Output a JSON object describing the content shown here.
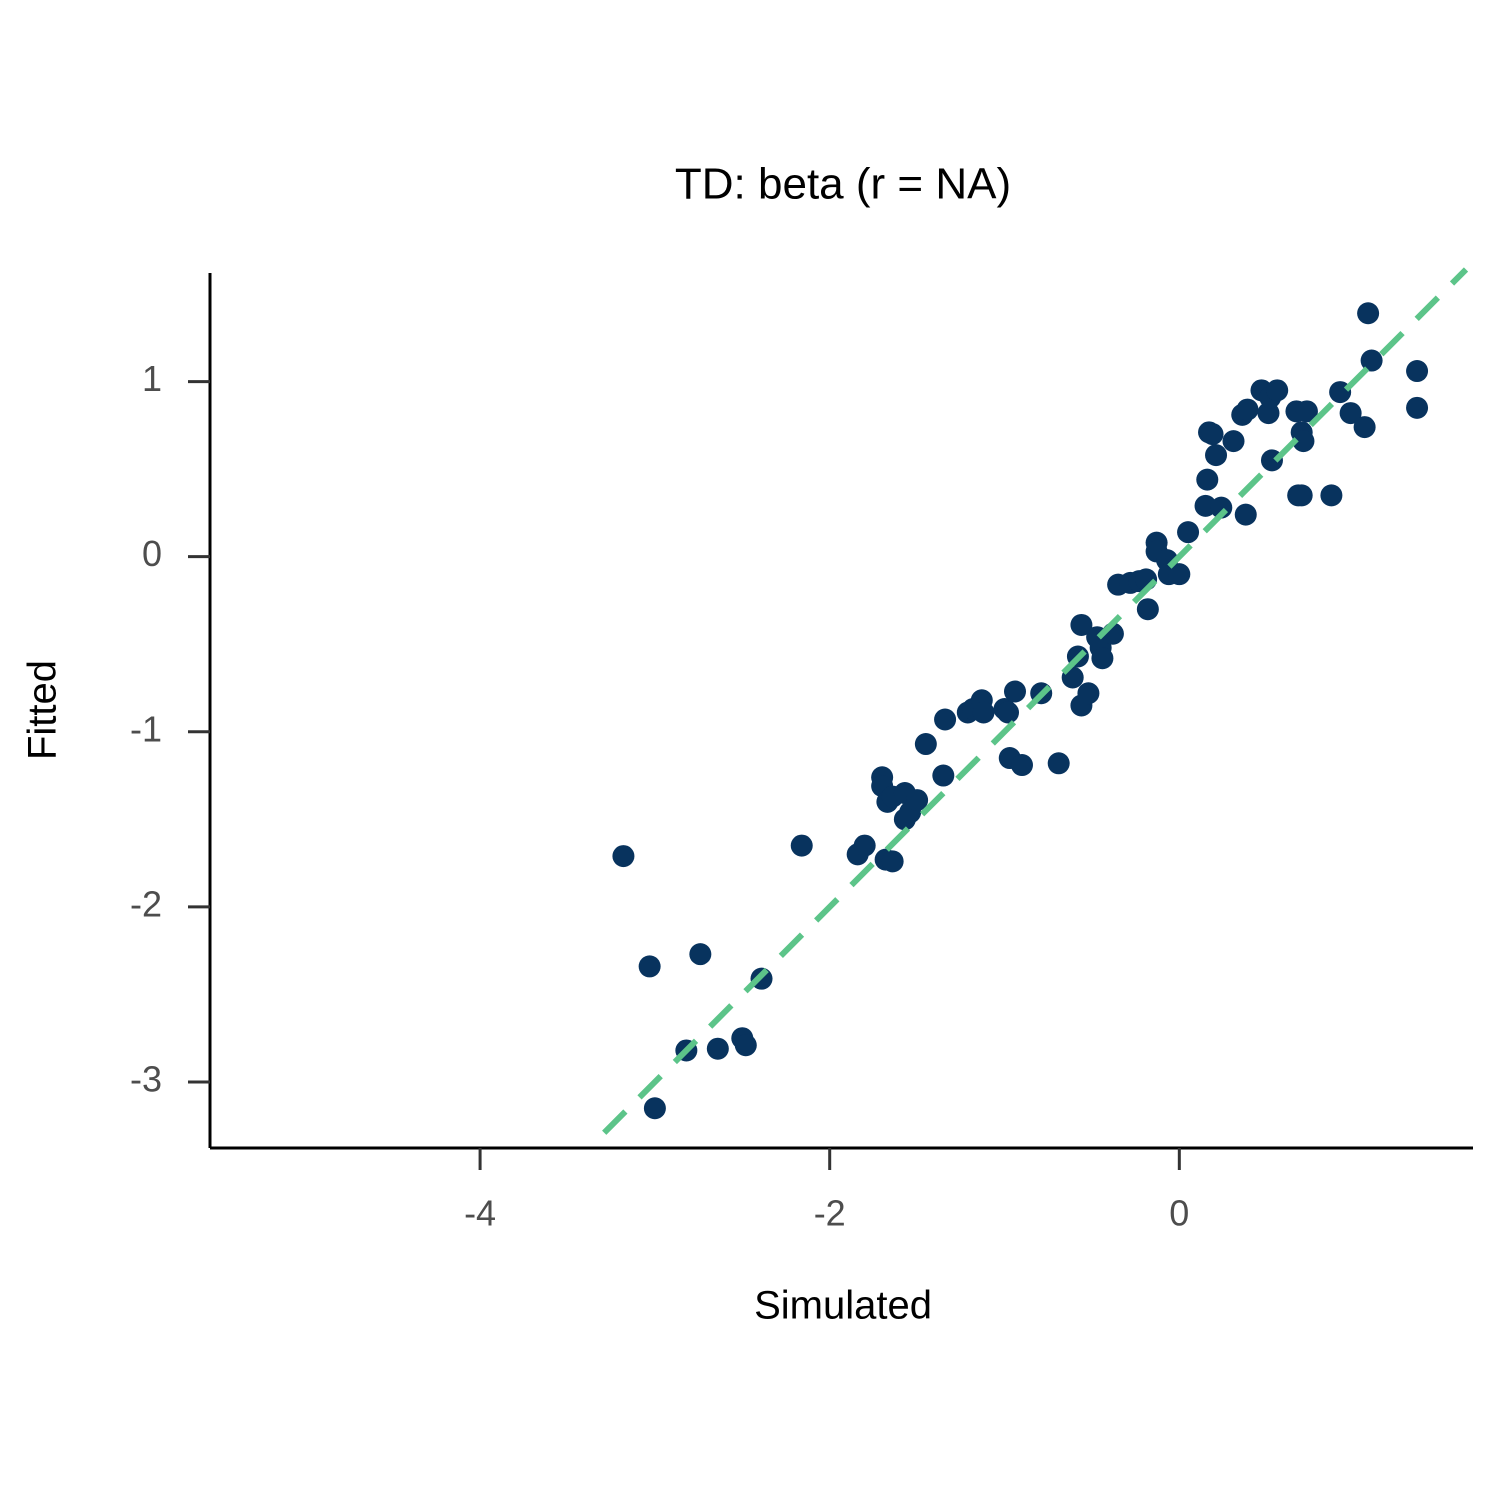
{
  "chart_data": {
    "type": "scatter",
    "title": "TD: beta (r = NA)",
    "x_label": "Simulated",
    "y_label": "Fitted",
    "x": [
      -3.18,
      -3.03,
      -2.74,
      -2.39,
      -2.82,
      -2.64,
      -2.5,
      -2.48,
      -3.0,
      -2.16,
      -1.84,
      -1.8,
      -1.68,
      -1.64,
      -1.7,
      -1.7,
      -1.67,
      -1.64,
      -1.57,
      -1.57,
      -1.54,
      -1.5,
      -1.45,
      -1.35,
      -1.34,
      -1.21,
      -1.18,
      -1.13,
      -1.12,
      -1.0,
      -0.98,
      -0.94,
      -0.79,
      -0.97,
      -0.9,
      -0.69,
      -0.61,
      -0.58,
      -0.56,
      -0.56,
      -0.52,
      -0.47,
      -0.45,
      -0.44,
      -0.38,
      -0.35,
      -0.28,
      -0.23,
      -0.19,
      -0.18,
      -0.13,
      -0.13,
      -0.07,
      -0.06,
      0.0,
      0.05,
      0.15,
      0.16,
      0.17,
      0.19,
      0.21,
      0.24,
      0.31,
      0.36,
      0.39,
      0.38,
      0.47,
      0.51,
      0.52,
      0.56,
      0.53,
      0.68,
      0.7,
      0.67,
      0.73,
      0.7,
      0.71,
      0.87,
      0.92,
      0.98,
      1.06,
      1.08,
      1.1,
      1.36,
      1.36
    ],
    "values": [
      -1.71,
      -2.34,
      -2.27,
      -2.41,
      -2.82,
      -2.81,
      -2.75,
      -2.79,
      -3.15,
      -1.65,
      -1.7,
      -1.65,
      -1.73,
      -1.74,
      -1.26,
      -1.31,
      -1.4,
      -1.37,
      -1.35,
      -1.5,
      -1.46,
      -1.39,
      -1.07,
      -1.25,
      -0.93,
      -0.89,
      -0.87,
      -0.82,
      -0.89,
      -0.87,
      -0.89,
      -0.77,
      -0.78,
      -1.15,
      -1.19,
      -1.18,
      -0.69,
      -0.57,
      -0.39,
      -0.85,
      -0.78,
      -0.46,
      -0.52,
      -0.58,
      -0.44,
      -0.16,
      -0.15,
      -0.14,
      -0.13,
      -0.3,
      0.08,
      0.03,
      -0.02,
      -0.1,
      -0.1,
      0.14,
      0.29,
      0.44,
      0.71,
      0.7,
      0.58,
      0.28,
      0.66,
      0.81,
      0.84,
      0.24,
      0.95,
      0.82,
      0.91,
      0.95,
      0.55,
      0.35,
      0.35,
      0.83,
      0.83,
      0.71,
      0.66,
      0.35,
      0.94,
      0.82,
      0.74,
      1.39,
      1.12,
      1.06,
      0.85
    ],
    "color": "#08335e",
    "reference_line": {
      "x": [
        -3.29,
        1.64
      ],
      "y": [
        -3.29,
        1.64
      ],
      "color": "#5cc489"
    },
    "xlim": [
      -5.545,
      1.68
    ],
    "ylim": [
      -3.377,
      1.62
    ],
    "xticks": [
      -4,
      -2,
      0
    ],
    "yticks": [
      -3,
      -2,
      -1,
      0,
      1
    ]
  }
}
